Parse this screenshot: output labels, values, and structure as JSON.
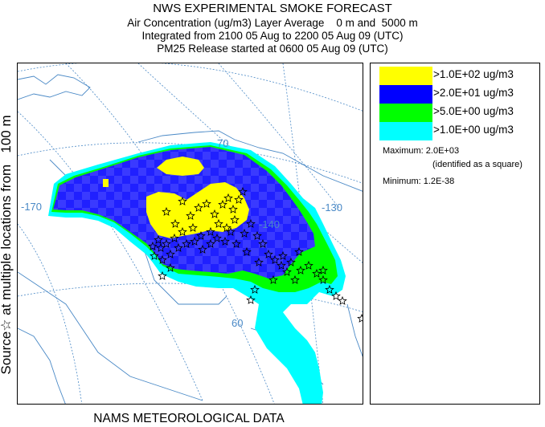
{
  "title": {
    "line1": "NWS EXPERIMENTAL SMOKE FORECAST",
    "line2": "Air Concentration (ug/m3) Layer Average    0 m and  5000 m",
    "line3": "Integrated from 2100 05 Aug to 2200 05 Aug 09 (UTC)",
    "line4": "PM25 Release started at 0600 05 Aug 09 (UTC)"
  },
  "side_label": "Source☆ at multiple locations from   100 m",
  "bottom_label": "NAMS METEOROLOGICAL DATA",
  "legend": {
    "items": [
      {
        "label": ">1.0E+02 ug/m3",
        "color": "#ffff00"
      },
      {
        "label": ">2.0E+01 ug/m3",
        "color": "#0000ff"
      },
      {
        "label": ">5.0E+00 ug/m3",
        "color": "#00ff00"
      },
      {
        "label": ">1.0E+00 ug/m3",
        "color": "#00ffff"
      }
    ],
    "maximum": "Maximum: 2.0E+03",
    "maximum_note": "(identified as a square)",
    "minimum": "Minimum: 1.2E-38"
  },
  "map": {
    "graticule_labels": [
      "-130",
      "-140",
      "-170",
      "60",
      "70"
    ],
    "colors": {
      "graticule": "#4a89c6",
      "coast": "#4a89c6",
      "source_marker": "#000000"
    },
    "source_marker_icon": "star-outline-icon"
  }
}
